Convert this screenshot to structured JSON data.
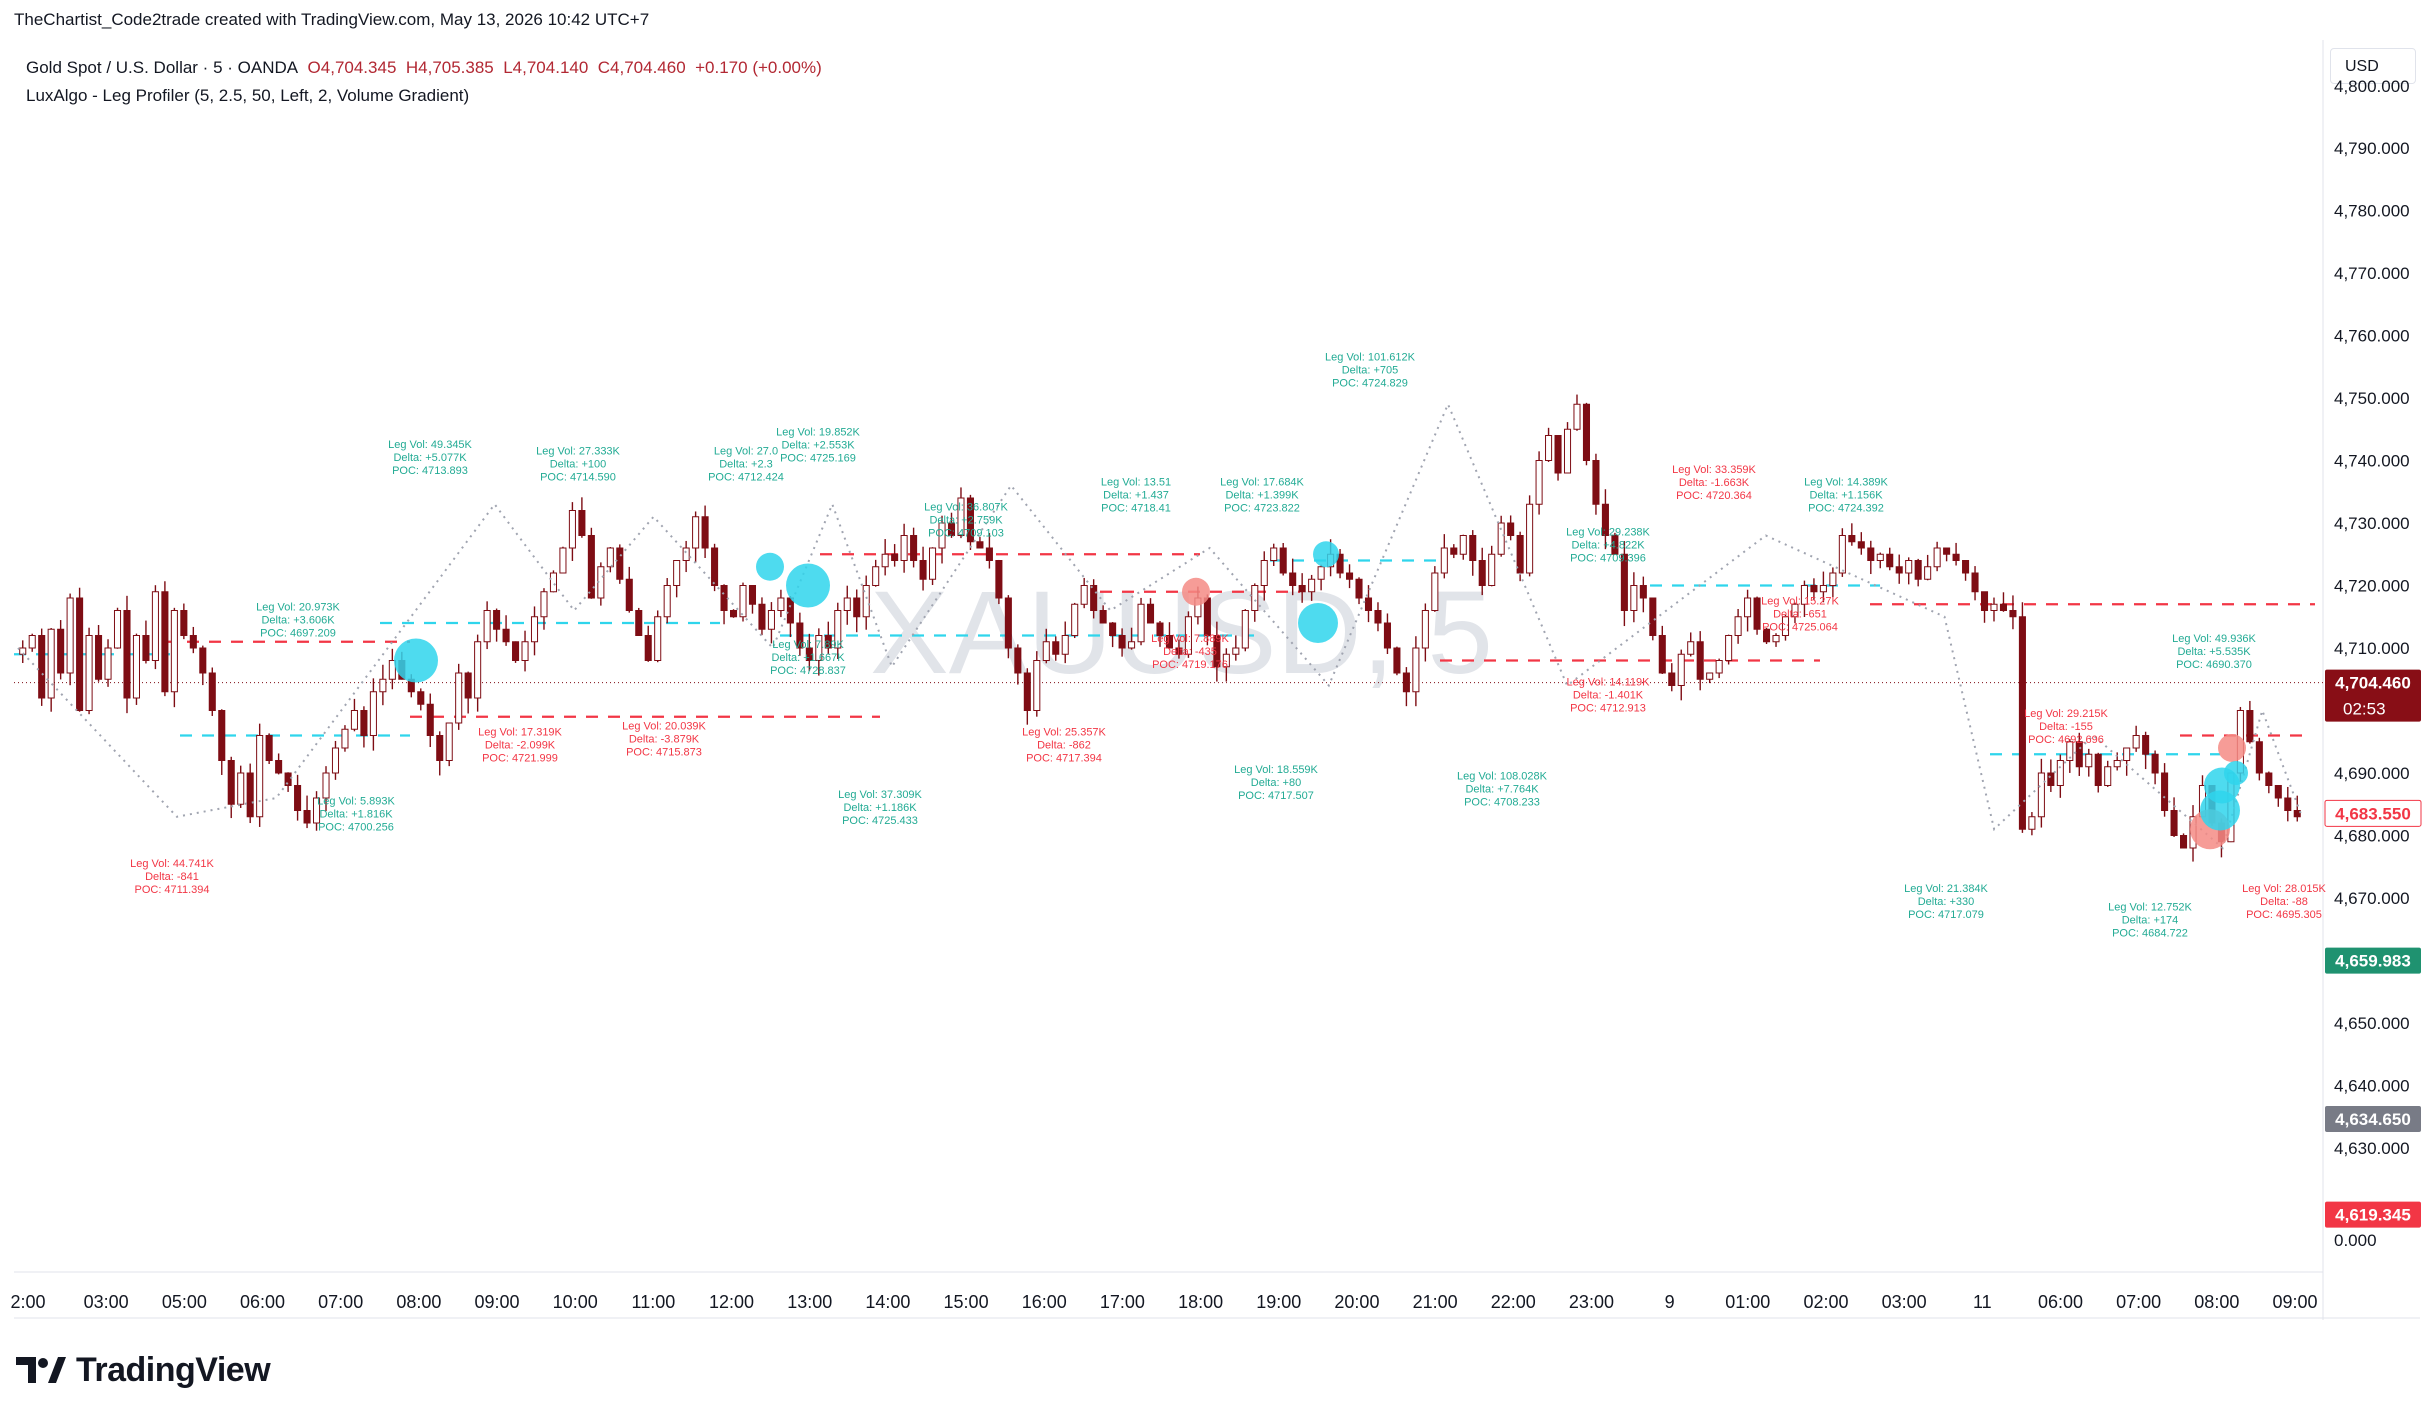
{
  "header": {
    "credit": "TheChartist_Code2trade created with TradingView.com, May 13, 2026 10:42 UTC+7"
  },
  "legend": {
    "symbol": "Gold Spot / U.S. Dollar · 5 · OANDA",
    "open": "O4,704.345",
    "high": "H4,705.385",
    "low": "L4,704.140",
    "close": "C4,704.460",
    "change": "+0.170 (+0.00%)",
    "indicator": "LuxAlgo - Leg Profiler (5, 2.5, 50, Left, 2, Volume Gradient)"
  },
  "currency_button": "USD",
  "watermark": "XAUUSD, 5",
  "footer": {
    "brand": "TradingView"
  },
  "colors": {
    "up": "#7e0d14",
    "down": "#7e0d14",
    "green_label": "#22ab94",
    "red_label": "#f23645",
    "cyan": "#2fd5ec",
    "salmon": "#f58b85",
    "dark_red_tag": "#880e16",
    "green_tag": "#1f9270",
    "gray_tag": "#787b86",
    "red_tag": "#f23645"
  },
  "chart_data": {
    "type": "candlestick",
    "y_ticks": [
      "4,790.000",
      "4,780.000",
      "4,770.000",
      "4,760.000",
      "4,750.000",
      "4,740.000",
      "4,730.000",
      "4,720.000",
      "4,710.000",
      "4,700.000",
      "4,690.000",
      "4,680.000",
      "4,670.000",
      "4,660.000",
      "4,650.000",
      "4,640.000",
      "4,630.000",
      "4,620.000",
      "0.000"
    ],
    "y_values": [
      4790,
      4780,
      4770,
      4760,
      4750,
      4740,
      4730,
      4720,
      4710,
      4700,
      4690,
      4680,
      4670,
      4660,
      4650,
      4640,
      4630,
      4620,
      4615.3
    ],
    "y_top_partial": "4,800.000",
    "x_ticks": [
      "2:00",
      "03:00",
      "05:00",
      "06:00",
      "07:00",
      "08:00",
      "09:00",
      "10:00",
      "11:00",
      "12:00",
      "13:00",
      "14:00",
      "15:00",
      "16:00",
      "17:00",
      "18:00",
      "19:00",
      "20:00",
      "21:00",
      "22:00",
      "23:00",
      "9",
      "01:00",
      "02:00",
      "03:00",
      "11",
      "06:00",
      "07:00",
      "08:00",
      "09:00"
    ],
    "price_tags": [
      {
        "value": "4,704.460",
        "sub": "02:53",
        "style": "current"
      },
      {
        "value": "4,683.550",
        "style": "outline"
      },
      {
        "value": "4,659.983",
        "style": "green"
      },
      {
        "value": "4,634.650",
        "style": "gray"
      },
      {
        "value": "4,619.345",
        "style": "red"
      }
    ],
    "current_price": 4704.46,
    "candle_path": [
      4710,
      4712,
      4702,
      4713,
      4706,
      4718,
      4700,
      4712,
      4705,
      4710,
      4716,
      4702,
      4712,
      4708,
      4719,
      4703,
      4716,
      4712,
      4710,
      4706,
      4700,
      4692,
      4685,
      4690,
      4683,
      4696,
      4692,
      4690,
      4688,
      4684,
      4682,
      4686,
      4690,
      4694,
      4697,
      4700,
      4696,
      4703,
      4705,
      4708,
      4705,
      4703,
      4701,
      4696,
      4692,
      4698,
      4706,
      4702,
      4711,
      4716,
      4713,
      4711,
      4708,
      4711,
      4715,
      4719,
      4722,
      4726,
      4732,
      4728,
      4718,
      4723,
      4726,
      4721,
      4716,
      4712,
      4708,
      4715,
      4720,
      4724,
      4726,
      4731,
      4726,
      4720,
      4716,
      4715,
      4720,
      4717,
      4713,
      4716,
      4718,
      4714,
      4710,
      4708,
      4712,
      4710,
      4716,
      4718,
      4715,
      4720,
      4723,
      4725,
      4724,
      4728,
      4724,
      4721,
      4726,
      4730,
      4728,
      4734,
      4727,
      4726,
      4724,
      4718,
      4710,
      4706,
      4700,
      4708,
      4711,
      4709,
      4712,
      4717,
      4720,
      4716,
      4714,
      4712,
      4710,
      4711,
      4717,
      4714,
      4712,
      4710,
      4709,
      4715,
      4718,
      4712,
      4707,
      4709,
      4710,
      4716,
      4720,
      4724,
      4726,
      4722,
      4720,
      4719,
      4721,
      4723,
      4725,
      4722,
      4721,
      4718,
      4716,
      4714,
      4710,
      4706,
      4703,
      4710,
      4716,
      4722,
      4726,
      4725,
      4728,
      4724,
      4720,
      4725,
      4730,
      4728,
      4722,
      4733,
      4740,
      4744,
      4738,
      4745,
      4749,
      4740,
      4733,
      4728,
      4725,
      4716,
      4720,
      4718,
      4712,
      4706,
      4704,
      4709,
      4711,
      4705,
      4706,
      4708,
      4712,
      4715,
      4718,
      4713,
      4711,
      4712,
      4715,
      4717,
      4720,
      4719,
      4720,
      4722,
      4728,
      4727,
      4726,
      4724,
      4725,
      4723,
      4722,
      4724,
      4721,
      4723,
      4726,
      4725,
      4724,
      4722,
      4719,
      4716,
      4717,
      4716,
      4715,
      4681,
      4683,
      4690,
      4688,
      4692,
      4695,
      4691,
      4693,
      4688,
      4691,
      4692,
      4694,
      4696,
      4693,
      4690,
      4684,
      4680,
      4678,
      4683,
      4688,
      4682,
      4679,
      4690,
      4700,
      4695,
      4690,
      4688,
      4686,
      4684,
      4683
    ]
  },
  "leg_labels": [
    {
      "lines": [
        "Leg Vol: 49.345K",
        "Delta: +5.077K",
        "POC: 4713.893"
      ],
      "color": "green"
    },
    {
      "lines": [
        "Leg Vol: 27.333K",
        "Delta: +100",
        "POC: 4714.590"
      ],
      "color": "green"
    },
    {
      "lines": [
        "Leg Vol: 27.0",
        "Delta: +2.3",
        "POC: 4712.424"
      ],
      "color": "green"
    },
    {
      "lines": [
        "Leg Vol: 19.852K",
        "Delta: +2.553K",
        "POC: 4725.169"
      ],
      "color": "green"
    },
    {
      "lines": [
        "Leg Vol: 36.807K",
        "Delta: +2.759K",
        "POC: 4709.103"
      ],
      "color": "green"
    },
    {
      "lines": [
        "Leg Vol: 13.51",
        "Delta: +1.437",
        "POC: 4718.41"
      ],
      "color": "green"
    },
    {
      "lines": [
        "Leg Vol: 17.684K",
        "Delta: +1.399K",
        "POC: 4723.822"
      ],
      "color": "green"
    },
    {
      "lines": [
        "Leg Vol: 101.612K",
        "Delta: +705",
        "POC: 4724.829"
      ],
      "color": "green"
    },
    {
      "lines": [
        "Leg Vol: 29.238K",
        "Delta: +4.822K",
        "POC: 4709.396"
      ],
      "color": "green"
    },
    {
      "lines": [
        "Leg Vol: 33.359K",
        "Delta: -1.663K",
        "POC: 4720.364"
      ],
      "color": "red"
    },
    {
      "lines": [
        "Leg Vol: 14.389K",
        "Delta: +1.156K",
        "POC: 4724.392"
      ],
      "color": "green"
    },
    {
      "lines": [
        "Leg Vol: 20.973K",
        "Delta: +3.606K",
        "POC: 4697.209"
      ],
      "color": "green"
    },
    {
      "lines": [
        "Leg Vol: 15.27K",
        "Delta: -651",
        "POC: 4725.064"
      ],
      "color": "red"
    },
    {
      "lines": [
        "Leg Vol: 7.889K",
        "Delta: -435",
        "POC: 4719.176"
      ],
      "color": "red"
    },
    {
      "lines": [
        "Leg Vol: 49.936K",
        "Delta: +5.535K",
        "POC: 4690.370"
      ],
      "color": "green"
    },
    {
      "lines": [
        "Leg Vol: 7.89K",
        "Delta: +1.667K",
        "POC: 4728.837"
      ],
      "color": "green"
    },
    {
      "lines": [
        "Leg Vol: 17.319K",
        "Delta: -2.099K",
        "POC: 4721.999"
      ],
      "color": "red"
    },
    {
      "lines": [
        "Leg Vol: 20.039K",
        "Delta: -3.879K",
        "POC: 4715.873"
      ],
      "color": "red"
    },
    {
      "lines": [
        "Leg Vol: 25.357K",
        "Delta: -862",
        "POC: 4717.394"
      ],
      "color": "red"
    },
    {
      "lines": [
        "Leg Vol: 14.119K",
        "Delta: -1.401K",
        "POC: 4712.913"
      ],
      "color": "red"
    },
    {
      "lines": [
        "Leg Vol: 29.215K",
        "Delta: -155",
        "POC: 4692.696"
      ],
      "color": "red"
    },
    {
      "lines": [
        "Leg Vol: 18.559K",
        "Delta: +80",
        "POC: 4717.507"
      ],
      "color": "green"
    },
    {
      "lines": [
        "Leg Vol: 108.028K",
        "Delta: +7.764K",
        "POC: 4708.233"
      ],
      "color": "green"
    },
    {
      "lines": [
        "Leg Vol: 37.309K",
        "Delta: +1.186K",
        "POC: 4725.433"
      ],
      "color": "green"
    },
    {
      "lines": [
        "Leg Vol: 5.893K",
        "Delta: +1.816K",
        "POC: 4700.256"
      ],
      "color": "green"
    },
    {
      "lines": [
        "Leg Vol: 44.741K",
        "Delta: -841",
        "POC: 4711.394"
      ],
      "color": "red"
    },
    {
      "lines": [
        "Leg Vol: 21.384K",
        "Delta: +330",
        "POC: 4717.079"
      ],
      "color": "green"
    },
    {
      "lines": [
        "Leg Vol: 12.752K",
        "Delta: +174",
        "POC: 4684.722"
      ],
      "color": "green"
    },
    {
      "lines": [
        "Leg Vol: 28.015K",
        "Delta: -88",
        "POC: 4695.305"
      ],
      "color": "red"
    }
  ]
}
